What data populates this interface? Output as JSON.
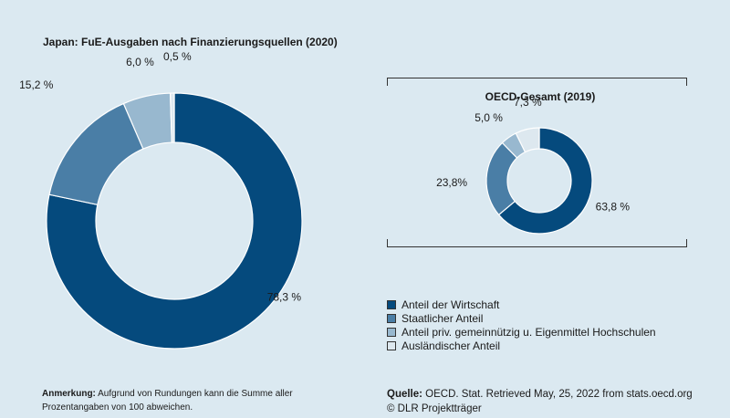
{
  "chart_data": [
    {
      "type": "pie",
      "variant": "donut",
      "title": "Japan: FuE-Ausgaben nach Finanzierungsquellen (2020)",
      "categories": [
        "Anteil der Wirtschaft",
        "Staatlicher Anteil",
        "Anteil priv. gemeinnützig u. Eigenmittel Hochschulen",
        "Ausländischer Anteil"
      ],
      "values": [
        78.3,
        15.2,
        6.0,
        0.5
      ],
      "labels": [
        "78,3 %",
        "15,2 %",
        "6,0 %",
        "0,5 %"
      ],
      "unit": "%"
    },
    {
      "type": "pie",
      "variant": "donut",
      "title": "OECD-Gesamt (2019)",
      "categories": [
        "Anteil der Wirtschaft",
        "Staatlicher Anteil",
        "Anteil priv. gemeinnützig u. Eigenmittel Hochschulen",
        "Ausländischer Anteil"
      ],
      "values": [
        63.8,
        23.8,
        5.0,
        7.3
      ],
      "labels": [
        "63,8 %",
        "23,8%",
        "5,0 %",
        "7,3 %"
      ],
      "unit": "%"
    }
  ],
  "colors": [
    "#054a7d",
    "#4a7ea6",
    "#98b8cf",
    "#dde8ef"
  ],
  "legend": {
    "position": "bottom-right",
    "items": [
      {
        "label": "Anteil der Wirtschaft"
      },
      {
        "label": "Staatlicher Anteil"
      },
      {
        "label": "Anteil priv. gemeinnützig u. Eigenmittel Hochschulen"
      },
      {
        "label": "Ausländischer Anteil"
      }
    ]
  },
  "footer": {
    "note_label": "Anmerkung:",
    "note_text": " Aufgrund von Rundungen kann die Summe aller Prozentangaben von 100 abweichen.",
    "source_label": "Quelle:",
    "source_text": " OECD. Stat. Retrieved May, 25, 2022 from stats.oecd.org",
    "copyright": "© DLR Projektträger"
  }
}
